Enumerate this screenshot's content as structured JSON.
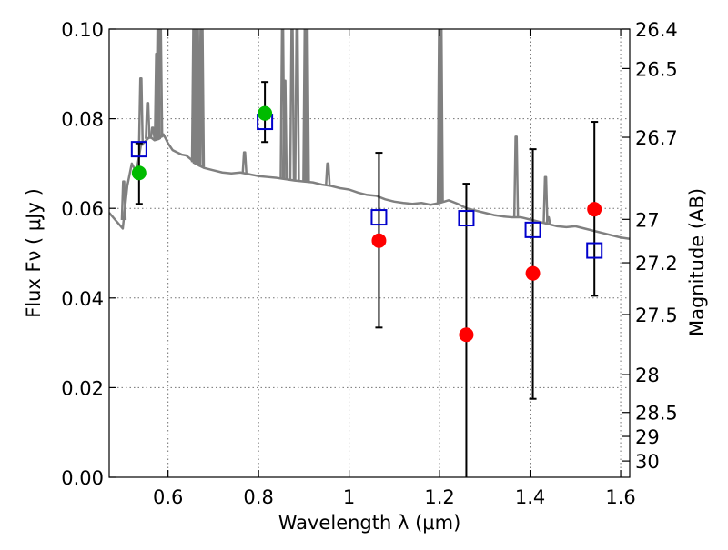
{
  "chart_data": {
    "type": "scatter",
    "xlabel": "Wavelength  λ (μm)",
    "ylabel": "Flux  Fν  ( μJy )",
    "ylabel_right": "Magnitude (AB)",
    "xlim": [
      0.47,
      1.62
    ],
    "ylim": [
      0.0,
      0.1
    ],
    "x_ticks": [
      0.6,
      0.8,
      1.0,
      1.2,
      1.4,
      1.6
    ],
    "x_tick_labels": [
      "0.6",
      "0.8",
      "1",
      "1.2",
      "1.4",
      "1.6"
    ],
    "y_ticks": [
      0.0,
      0.02,
      0.04,
      0.06,
      0.08,
      0.1
    ],
    "y_tick_labels": [
      "0.00",
      "0.02",
      "0.04",
      "0.06",
      "0.08",
      "0.10"
    ],
    "right_ticks": [
      {
        "mag": 26.4,
        "label": "26.4"
      },
      {
        "mag": 26.5,
        "label": "26.5"
      },
      {
        "mag": 26.7,
        "label": "26.7"
      },
      {
        "mag": 27.0,
        "label": "27"
      },
      {
        "mag": 27.2,
        "label": "27.2"
      },
      {
        "mag": 27.5,
        "label": "27.5"
      },
      {
        "mag": 28.0,
        "label": "28"
      },
      {
        "mag": 28.5,
        "label": "28.5"
      },
      {
        "mag": 29.0,
        "label": "29"
      },
      {
        "mag": 30.0,
        "label": "30"
      }
    ],
    "grid": true,
    "series": [
      {
        "kind": "line",
        "color": "#808080",
        "x": [
          0.47,
          0.5,
          0.51,
          0.52,
          0.53,
          0.54,
          0.55,
          0.56,
          0.57,
          0.58,
          0.59,
          0.6,
          0.61,
          0.62,
          0.63,
          0.64,
          0.65,
          0.66,
          0.67,
          0.68,
          0.7,
          0.72,
          0.74,
          0.76,
          0.78,
          0.8,
          0.82,
          0.84,
          0.86,
          0.88,
          0.9,
          0.92,
          0.94,
          0.96,
          0.98,
          1.0,
          1.02,
          1.04,
          1.06,
          1.08,
          1.1,
          1.12,
          1.14,
          1.16,
          1.18,
          1.2,
          1.22,
          1.24,
          1.26,
          1.28,
          1.3,
          1.32,
          1.34,
          1.36,
          1.38,
          1.4,
          1.42,
          1.44,
          1.46,
          1.48,
          1.5,
          1.52,
          1.54,
          1.56,
          1.58,
          1.6,
          1.62
        ],
        "y": [
          0.059,
          0.0555,
          0.065,
          0.07,
          0.068,
          0.074,
          0.075,
          0.076,
          0.0752,
          0.0755,
          0.0765,
          0.0745,
          0.073,
          0.0725,
          0.072,
          0.0718,
          0.071,
          0.07,
          0.0695,
          0.069,
          0.0685,
          0.068,
          0.0678,
          0.068,
          0.0676,
          0.0672,
          0.067,
          0.0668,
          0.0665,
          0.0662,
          0.066,
          0.0658,
          0.0653,
          0.065,
          0.0645,
          0.0642,
          0.0635,
          0.063,
          0.0628,
          0.062,
          0.0615,
          0.0612,
          0.061,
          0.0612,
          0.0608,
          0.0612,
          0.0618,
          0.061,
          0.06,
          0.0595,
          0.059,
          0.0585,
          0.0582,
          0.058,
          0.058,
          0.0575,
          0.057,
          0.0565,
          0.056,
          0.0558,
          0.056,
          0.0555,
          0.055,
          0.0545,
          0.054,
          0.0535,
          0.0532
        ]
      },
      {
        "kind": "line-spikes",
        "color": "#808080",
        "spikes": [
          {
            "x": 0.502,
            "peak": 0.066
          },
          {
            "x": 0.54,
            "peak": 0.089
          },
          {
            "x": 0.555,
            "peak": 0.0835
          },
          {
            "x": 0.566,
            "peak": 0.078
          },
          {
            "x": 0.575,
            "peak": 0.0945
          },
          {
            "x": 0.578,
            "peak": 0.1
          },
          {
            "x": 0.583,
            "peak": 0.1
          },
          {
            "x": 0.657,
            "peak": 0.1
          },
          {
            "x": 0.661,
            "peak": 0.1
          },
          {
            "x": 0.665,
            "peak": 0.1
          },
          {
            "x": 0.673,
            "peak": 0.1
          },
          {
            "x": 0.675,
            "peak": 0.1
          },
          {
            "x": 0.769,
            "peak": 0.0725
          },
          {
            "x": 0.853,
            "peak": 0.1
          },
          {
            "x": 0.858,
            "peak": 0.0885
          },
          {
            "x": 0.874,
            "peak": 0.1
          },
          {
            "x": 0.885,
            "peak": 0.1
          },
          {
            "x": 0.903,
            "peak": 0.1
          },
          {
            "x": 0.907,
            "peak": 0.1
          },
          {
            "x": 0.953,
            "peak": 0.07
          },
          {
            "x": 1.2,
            "peak": 0.1
          },
          {
            "x": 1.203,
            "peak": 0.1
          },
          {
            "x": 1.369,
            "peak": 0.076
          },
          {
            "x": 1.434,
            "peak": 0.067
          },
          {
            "x": 1.44,
            "peak": 0.058
          }
        ]
      },
      {
        "kind": "open-squares",
        "color": "#0000cc",
        "x": [
          0.536,
          0.814,
          1.066,
          1.259,
          1.406,
          1.542
        ],
        "y": [
          0.0732,
          0.0793,
          0.058,
          0.0578,
          0.0552,
          0.0506
        ]
      },
      {
        "kind": "points",
        "color": "#00bb00",
        "x": [
          0.536,
          0.814
        ],
        "y": [
          0.0679,
          0.0812
        ]
      },
      {
        "kind": "points",
        "color": "#ff0000",
        "x": [
          1.066,
          1.259,
          1.406,
          1.542
        ],
        "y": [
          0.0528,
          0.0318,
          0.0455,
          0.0598
        ]
      }
    ],
    "error_bars": [
      {
        "x": 0.536,
        "low": 0.061,
        "high": 0.0745
      },
      {
        "x": 0.814,
        "low": 0.0748,
        "high": 0.0882
      },
      {
        "x": 1.066,
        "low": 0.0334,
        "high": 0.0724
      },
      {
        "x": 1.259,
        "low": 0.0,
        "high": 0.0655
      },
      {
        "x": 1.406,
        "low": 0.0175,
        "high": 0.0732
      },
      {
        "x": 1.542,
        "low": 0.0405,
        "high": 0.0793
      }
    ]
  }
}
